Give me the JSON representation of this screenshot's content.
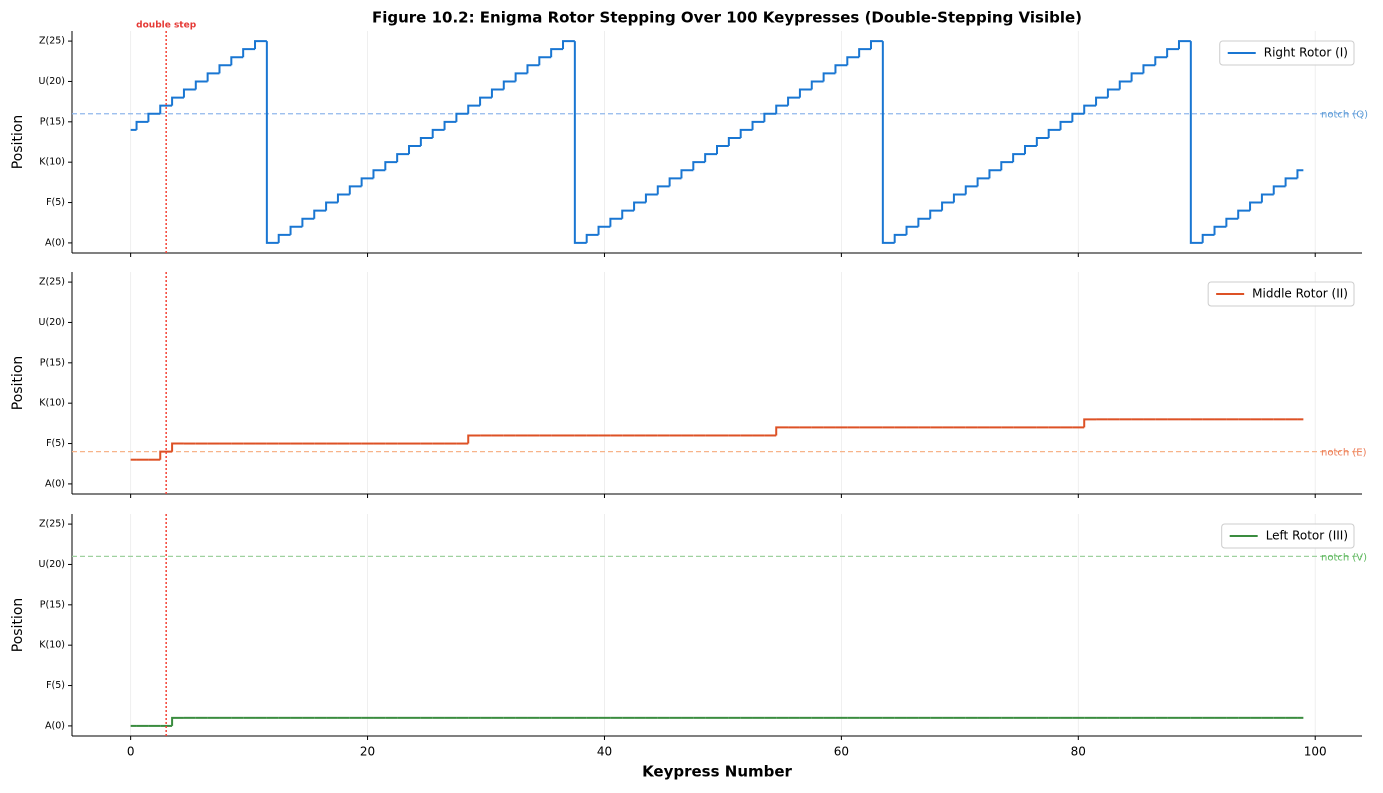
{
  "chart_data": [
    {
      "type": "line",
      "title": "Figure 10.2: Enigma Rotor Stepping Over 100 Keypresses (Double-Stepping Visible)",
      "ylabel": "Position",
      "annotation": {
        "text": "double step",
        "x": 3
      },
      "x": [
        0,
        1,
        2,
        3,
        4,
        5,
        6,
        7,
        8,
        9,
        10,
        11,
        12,
        13,
        14,
        15,
        16,
        17,
        18,
        19,
        20,
        21,
        22,
        23,
        24,
        25,
        26,
        27,
        28,
        29,
        30,
        31,
        32,
        33,
        34,
        35,
        36,
        37,
        38,
        39,
        40,
        41,
        42,
        43,
        44,
        45,
        46,
        47,
        48,
        49,
        50,
        51,
        52,
        53,
        54,
        55,
        56,
        57,
        58,
        59,
        60,
        61,
        62,
        63,
        64,
        65,
        66,
        67,
        68,
        69,
        70,
        71,
        72,
        73,
        74,
        75,
        76,
        77,
        78,
        79,
        80,
        81,
        82,
        83,
        84,
        85,
        86,
        87,
        88,
        89,
        90,
        91,
        92,
        93,
        94,
        95,
        96,
        97,
        98,
        99
      ],
      "xlim": [
        -4.95,
        103.95
      ],
      "xticks": [
        0,
        20,
        40,
        60,
        80,
        100
      ],
      "xtick_labels": false,
      "ylim": [
        -1.25,
        26.25
      ],
      "yticks": [
        {
          "value": 0,
          "label": "A(0)"
        },
        {
          "value": 5,
          "label": "F(5)"
        },
        {
          "value": 10,
          "label": "K(10)"
        },
        {
          "value": 15,
          "label": "P(15)"
        },
        {
          "value": 20,
          "label": "U(20)"
        },
        {
          "value": 25,
          "label": "Z(25)"
        }
      ],
      "grid": "x",
      "legend": "upper right",
      "series": [
        {
          "name": "Right Rotor (I)",
          "color": "#1976d2",
          "values": [
            14,
            15,
            16,
            17,
            18,
            19,
            20,
            21,
            22,
            23,
            24,
            25,
            0,
            1,
            2,
            3,
            4,
            5,
            6,
            7,
            8,
            9,
            10,
            11,
            12,
            13,
            14,
            15,
            16,
            17,
            18,
            19,
            20,
            21,
            22,
            23,
            24,
            25,
            0,
            1,
            2,
            3,
            4,
            5,
            6,
            7,
            8,
            9,
            10,
            11,
            12,
            13,
            14,
            15,
            16,
            17,
            18,
            19,
            20,
            21,
            22,
            23,
            24,
            25,
            0,
            1,
            2,
            3,
            4,
            5,
            6,
            7,
            8,
            9,
            10,
            11,
            12,
            13,
            14,
            15,
            16,
            17,
            18,
            19,
            20,
            21,
            22,
            23,
            24,
            25,
            0,
            1,
            2,
            3,
            4,
            5,
            6,
            7,
            8,
            9
          ]
        }
      ],
      "notch": {
        "value": 16,
        "label": "notch (Q)",
        "color": "#90b8ec",
        "text_color": "#5b9bd5"
      },
      "marker_line": {
        "x": 3,
        "color": "#f44336"
      }
    },
    {
      "type": "line",
      "ylabel": "Position",
      "x": [
        0,
        1,
        2,
        3,
        4,
        5,
        6,
        7,
        8,
        9,
        10,
        11,
        12,
        13,
        14,
        15,
        16,
        17,
        18,
        19,
        20,
        21,
        22,
        23,
        24,
        25,
        26,
        27,
        28,
        29,
        30,
        31,
        32,
        33,
        34,
        35,
        36,
        37,
        38,
        39,
        40,
        41,
        42,
        43,
        44,
        45,
        46,
        47,
        48,
        49,
        50,
        51,
        52,
        53,
        54,
        55,
        56,
        57,
        58,
        59,
        60,
        61,
        62,
        63,
        64,
        65,
        66,
        67,
        68,
        69,
        70,
        71,
        72,
        73,
        74,
        75,
        76,
        77,
        78,
        79,
        80,
        81,
        82,
        83,
        84,
        85,
        86,
        87,
        88,
        89,
        90,
        91,
        92,
        93,
        94,
        95,
        96,
        97,
        98,
        99
      ],
      "xlim": [
        -4.95,
        103.95
      ],
      "xticks": [
        0,
        20,
        40,
        60,
        80,
        100
      ],
      "xtick_labels": false,
      "ylim": [
        -1.25,
        26.25
      ],
      "yticks": [
        {
          "value": 0,
          "label": "A(0)"
        },
        {
          "value": 5,
          "label": "F(5)"
        },
        {
          "value": 10,
          "label": "K(10)"
        },
        {
          "value": 15,
          "label": "P(15)"
        },
        {
          "value": 20,
          "label": "U(20)"
        },
        {
          "value": 25,
          "label": "Z(25)"
        }
      ],
      "grid": "x",
      "legend": "upper right",
      "series": [
        {
          "name": "Middle Rotor (II)",
          "color": "#dd5125",
          "values": [
            3,
            3,
            3,
            4,
            5,
            5,
            5,
            5,
            5,
            5,
            5,
            5,
            5,
            5,
            5,
            5,
            5,
            5,
            5,
            5,
            5,
            5,
            5,
            5,
            5,
            5,
            5,
            5,
            5,
            6,
            6,
            6,
            6,
            6,
            6,
            6,
            6,
            6,
            6,
            6,
            6,
            6,
            6,
            6,
            6,
            6,
            6,
            6,
            6,
            6,
            6,
            6,
            6,
            6,
            6,
            7,
            7,
            7,
            7,
            7,
            7,
            7,
            7,
            7,
            7,
            7,
            7,
            7,
            7,
            7,
            7,
            7,
            7,
            7,
            7,
            7,
            7,
            7,
            7,
            7,
            7,
            8,
            8,
            8,
            8,
            8,
            8,
            8,
            8,
            8,
            8,
            8,
            8,
            8,
            8,
            8,
            8,
            8,
            8,
            8
          ]
        }
      ],
      "notch": {
        "value": 4,
        "label": "notch (E)",
        "color": "#f7b48a",
        "text_color": "#ec7a55"
      },
      "marker_line": {
        "x": 3,
        "color": "#f44336"
      }
    },
    {
      "type": "line",
      "ylabel": "Position",
      "xlabel": "Keypress Number",
      "x": [
        0,
        1,
        2,
        3,
        4,
        5,
        6,
        7,
        8,
        9,
        10,
        11,
        12,
        13,
        14,
        15,
        16,
        17,
        18,
        19,
        20,
        21,
        22,
        23,
        24,
        25,
        26,
        27,
        28,
        29,
        30,
        31,
        32,
        33,
        34,
        35,
        36,
        37,
        38,
        39,
        40,
        41,
        42,
        43,
        44,
        45,
        46,
        47,
        48,
        49,
        50,
        51,
        52,
        53,
        54,
        55,
        56,
        57,
        58,
        59,
        60,
        61,
        62,
        63,
        64,
        65,
        66,
        67,
        68,
        69,
        70,
        71,
        72,
        73,
        74,
        75,
        76,
        77,
        78,
        79,
        80,
        81,
        82,
        83,
        84,
        85,
        86,
        87,
        88,
        89,
        90,
        91,
        92,
        93,
        94,
        95,
        96,
        97,
        98,
        99
      ],
      "xlim": [
        -4.95,
        103.95
      ],
      "xticks": [
        0,
        20,
        40,
        60,
        80,
        100
      ],
      "xtick_labels": true,
      "ylim": [
        -1.25,
        26.25
      ],
      "yticks": [
        {
          "value": 0,
          "label": "A(0)"
        },
        {
          "value": 5,
          "label": "F(5)"
        },
        {
          "value": 10,
          "label": "K(10)"
        },
        {
          "value": 15,
          "label": "P(15)"
        },
        {
          "value": 20,
          "label": "U(20)"
        },
        {
          "value": 25,
          "label": "Z(25)"
        }
      ],
      "grid": "x",
      "legend": "upper right",
      "series": [
        {
          "name": "Left Rotor (III)",
          "color": "#3a8c3f",
          "values": [
            0,
            0,
            0,
            0,
            1,
            1,
            1,
            1,
            1,
            1,
            1,
            1,
            1,
            1,
            1,
            1,
            1,
            1,
            1,
            1,
            1,
            1,
            1,
            1,
            1,
            1,
            1,
            1,
            1,
            1,
            1,
            1,
            1,
            1,
            1,
            1,
            1,
            1,
            1,
            1,
            1,
            1,
            1,
            1,
            1,
            1,
            1,
            1,
            1,
            1,
            1,
            1,
            1,
            1,
            1,
            1,
            1,
            1,
            1,
            1,
            1,
            1,
            1,
            1,
            1,
            1,
            1,
            1,
            1,
            1,
            1,
            1,
            1,
            1,
            1,
            1,
            1,
            1,
            1,
            1,
            1,
            1,
            1,
            1,
            1,
            1,
            1,
            1,
            1,
            1,
            1,
            1,
            1,
            1,
            1,
            1,
            1,
            1,
            1,
            1
          ]
        }
      ],
      "notch": {
        "value": 21,
        "label": "notch (V)",
        "color": "#9fd19f",
        "text_color": "#5cb85c"
      },
      "marker_line": {
        "x": 3,
        "color": "#f44336"
      }
    }
  ]
}
